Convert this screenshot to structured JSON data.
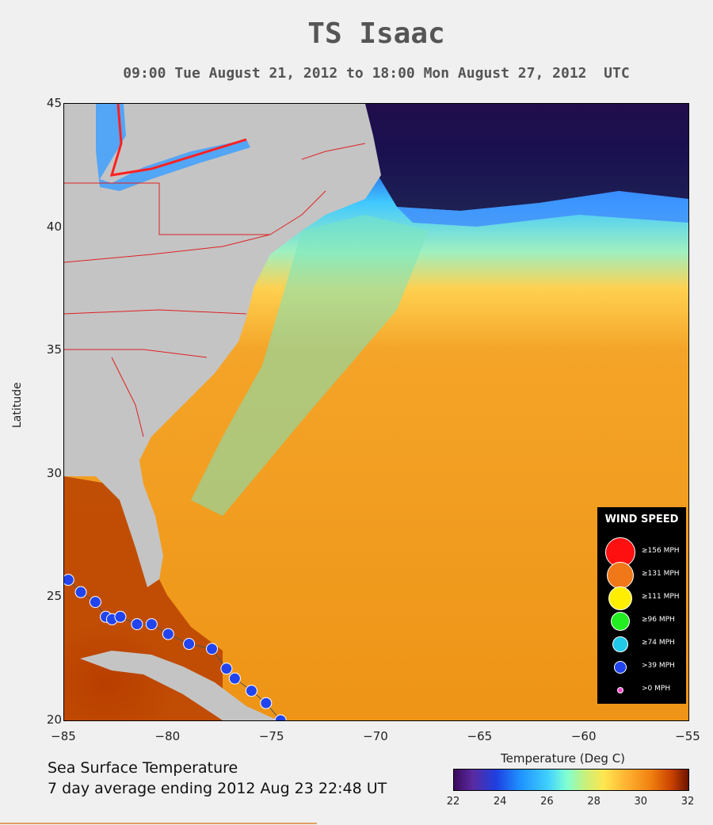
{
  "title": "TS Isaac",
  "subtitle": "09:00 Tue August 21, 2012 to 18:00 Mon August 27, 2012  UTC",
  "axes": {
    "ylabel": "Latitude",
    "x_ticks": [
      "−85",
      "−80",
      "−75",
      "−70",
      "−65",
      "−60",
      "−55"
    ],
    "y_ticks": [
      "45",
      "40",
      "35",
      "30",
      "25",
      "20"
    ],
    "lon_range": [
      -85,
      -55
    ],
    "lat_range": [
      20,
      45
    ]
  },
  "caption": {
    "line1": "Sea Surface Temperature",
    "line2": "7 day average ending 2012 Aug 23 22:48 UT"
  },
  "colorbar": {
    "title": "Temperature (Deg C)",
    "ticks": [
      "22",
      "24",
      "26",
      "28",
      "30",
      "32"
    ],
    "range": [
      22,
      32
    ]
  },
  "legend": {
    "title": "WIND SPEED",
    "items": [
      {
        "label": "≥156 MPH",
        "color": "#ff1010"
      },
      {
        "label": "≥131 MPH",
        "color": "#f07818"
      },
      {
        "label": "≥111 MPH",
        "color": "#ffee00"
      },
      {
        "label": "≥96 MPH",
        "color": "#22ee22"
      },
      {
        "label": "≥74 MPH",
        "color": "#22c8e8"
      },
      {
        "label": ">39 MPH",
        "color": "#2244ee"
      },
      {
        "label": ">0 MPH",
        "color": "#ff44cc"
      }
    ]
  },
  "track": {
    "intensity": ">39 MPH",
    "points": [
      [
        -84.8,
        25.7
      ],
      [
        -84.2,
        25.2
      ],
      [
        -83.5,
        24.8
      ],
      [
        -83.0,
        24.2
      ],
      [
        -82.7,
        24.1
      ],
      [
        -82.3,
        24.2
      ],
      [
        -81.5,
        23.9
      ],
      [
        -80.8,
        23.9
      ],
      [
        -80.0,
        23.5
      ],
      [
        -79.0,
        23.1
      ],
      [
        -77.9,
        22.9
      ],
      [
        -77.2,
        22.1
      ],
      [
        -76.8,
        21.7
      ],
      [
        -76.0,
        21.2
      ],
      [
        -75.3,
        20.7
      ],
      [
        -74.6,
        20.0
      ]
    ]
  },
  "colors": {
    "ocean_warm": "#f0a020",
    "ocean_hot": "#c84800",
    "ocean_cool": "#60e0ff",
    "ocean_cold": "#1c1050",
    "land": "#c4c4c4",
    "borders": "#e02020",
    "track": "#2244ee"
  }
}
